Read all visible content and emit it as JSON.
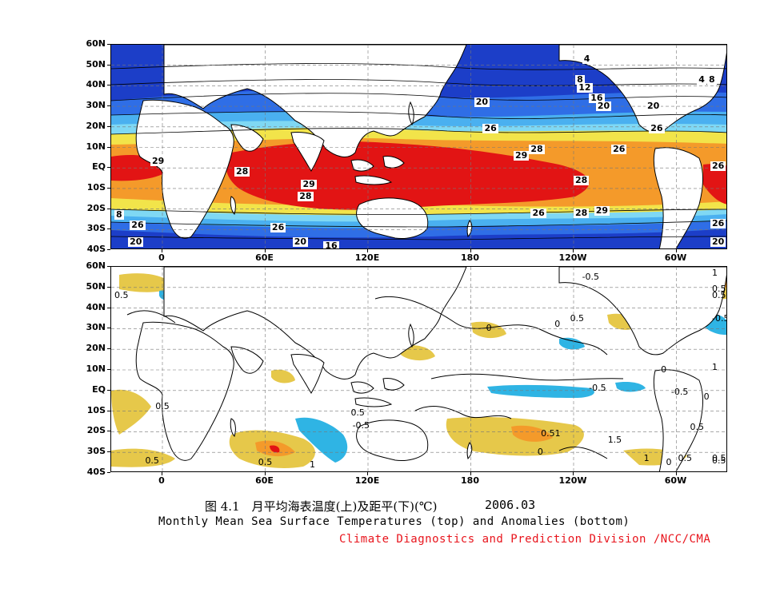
{
  "lat_labels": [
    "60N",
    "50N",
    "40N",
    "30N",
    "20N",
    "10N",
    "EQ",
    "10S",
    "20S",
    "30S",
    "40S"
  ],
  "lon_labels": [
    "0",
    "60E",
    "120E",
    "180",
    "120W",
    "60W"
  ],
  "top_map": {
    "contour_labels": [
      {
        "text": "4",
        "lon": 245,
        "lat": 53
      },
      {
        "text": "8",
        "lon": 241,
        "lat": 43
      },
      {
        "text": "12",
        "lon": 242,
        "lat": 39
      },
      {
        "text": "16",
        "lon": 249,
        "lat": 34
      },
      {
        "text": "20",
        "lon": 253,
        "lat": 30
      },
      {
        "text": "20",
        "lon": 182,
        "lat": 32
      },
      {
        "text": "26",
        "lon": 187,
        "lat": 19
      },
      {
        "text": "29",
        "lon": -7,
        "lat": 3
      },
      {
        "text": "28",
        "lon": 42,
        "lat": -2
      },
      {
        "text": "29",
        "lon": 205,
        "lat": 6
      },
      {
        "text": "28",
        "lon": 214,
        "lat": 9
      },
      {
        "text": "26",
        "lon": 262,
        "lat": 9
      },
      {
        "text": "26",
        "lon": 324,
        "lat": 1
      },
      {
        "text": "29",
        "lon": 81,
        "lat": -8
      },
      {
        "text": "28",
        "lon": 79,
        "lat": -14
      },
      {
        "text": "28",
        "lon": 240,
        "lat": -6
      },
      {
        "text": "26",
        "lon": 215,
        "lat": -22
      },
      {
        "text": "28",
        "lon": 240,
        "lat": -22
      },
      {
        "text": "29",
        "lon": 252,
        "lat": -21
      },
      {
        "text": "26",
        "lon": 324,
        "lat": -27
      },
      {
        "text": "26",
        "lon": -19,
        "lat": -28
      },
      {
        "text": "8",
        "lon": -28,
        "lat": -23
      },
      {
        "text": "26",
        "lon": 63,
        "lat": -29
      },
      {
        "text": "20",
        "lon": -20,
        "lat": -36
      },
      {
        "text": "20",
        "lon": 76,
        "lat": -36
      },
      {
        "text": "16",
        "lon": 94,
        "lat": -38
      },
      {
        "text": "20",
        "lon": 330,
        "lat": -36
      },
      {
        "text": "20",
        "lon": 282,
        "lat": 30
      },
      {
        "text": "26",
        "lon": 284,
        "lat": 19
      },
      {
        "text": "4",
        "lon": 312,
        "lat": 43
      },
      {
        "text": "8",
        "lon": 318,
        "lat": 43
      }
    ]
  },
  "bottom_map": {
    "contour_labels": [
      {
        "text": "1",
        "lon": 362,
        "lat": 57
      },
      {
        "text": "-0.5",
        "lon": 244,
        "lat": 55
      },
      {
        "text": "0.5",
        "lon": -29,
        "lat": 46
      },
      {
        "text": "0.5",
        "lon": 352,
        "lat": 46
      },
      {
        "text": "0.5",
        "lon": 365,
        "lat": 49
      },
      {
        "text": "0.5",
        "lon": 237,
        "lat": 35
      },
      {
        "text": "-0.5",
        "lon": 331,
        "lat": 35
      },
      {
        "text": "0",
        "lon": 228,
        "lat": 32
      },
      {
        "text": "0",
        "lon": 188,
        "lat": 30
      },
      {
        "text": "0",
        "lon": 290,
        "lat": 10
      },
      {
        "text": "1",
        "lon": 320,
        "lat": 11
      },
      {
        "text": "-0.5",
        "lon": 248,
        "lat": 1
      },
      {
        "text": "-0.5",
        "lon": 296,
        "lat": -1
      },
      {
        "text": "0",
        "lon": 315,
        "lat": -3
      },
      {
        "text": "0.5",
        "lon": -5,
        "lat": -8
      },
      {
        "text": "0.5",
        "lon": 109,
        "lat": -11
      },
      {
        "text": "-0.5",
        "lon": 110,
        "lat": -17
      },
      {
        "text": "0.51",
        "lon": 220,
        "lat": -21
      },
      {
        "text": "1.5",
        "lon": 259,
        "lat": -24
      },
      {
        "text": "0.5",
        "lon": 307,
        "lat": -18
      },
      {
        "text": "0.5",
        "lon": -11,
        "lat": -34
      },
      {
        "text": "0.5",
        "lon": 55,
        "lat": -35
      },
      {
        "text": "0.5",
        "lon": 300,
        "lat": -33
      },
      {
        "text": "0.5",
        "lon": 340,
        "lat": -34
      },
      {
        "text": "0.5",
        "lon": 375,
        "lat": -33
      },
      {
        "text": "1",
        "lon": 280,
        "lat": -33
      },
      {
        "text": "1",
        "lon": 85,
        "lat": -36
      },
      {
        "text": "0",
        "lon": 218,
        "lat": -30
      },
      {
        "text": "0",
        "lon": 293,
        "lat": -35
      }
    ]
  },
  "caption_cn": "图 4.1　月平均海表温度(上)及距平(下)(℃)",
  "caption_date": "2006.03",
  "caption_en": "Monthly Mean Sea Surface Temperatures (top)  and Anomalies (bottom)",
  "caption_credit": "Climate Diagnostics and Prediction Division /NCC/CMA",
  "colors": {
    "deep_blue": "#1c3ec8",
    "blue": "#2f6ee6",
    "sky": "#4ab0f0",
    "cyan": "#7fd8f4",
    "yellow": "#f2e44a",
    "orange": "#f49a2a",
    "red": "#e21414",
    "anom_yellow": "#e6c84a",
    "anom_cyan": "#2fb4e4"
  }
}
